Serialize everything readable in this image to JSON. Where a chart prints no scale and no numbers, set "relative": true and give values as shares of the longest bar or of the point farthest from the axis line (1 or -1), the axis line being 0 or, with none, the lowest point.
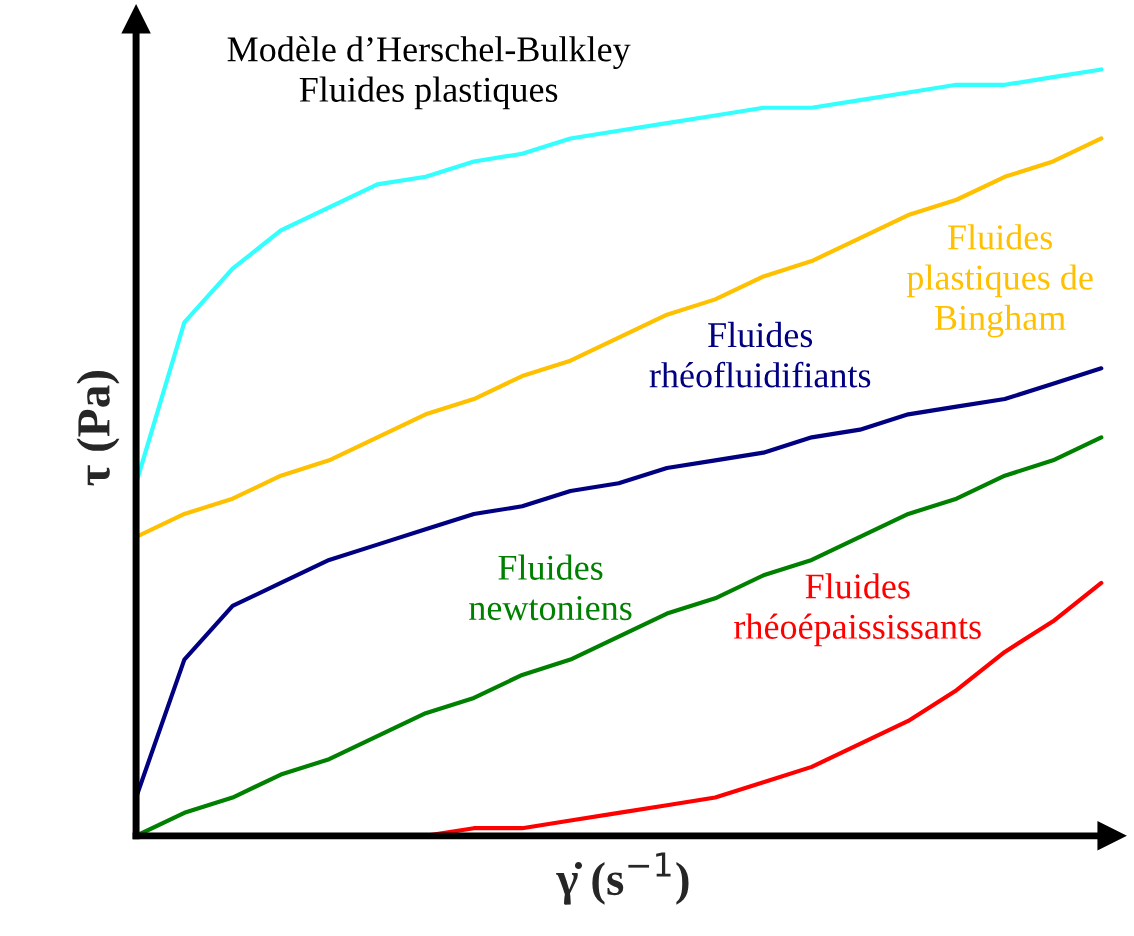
{
  "chart_data": {
    "type": "line",
    "relative": true,
    "xlabel": "γ̇ (s$^{−1}$)",
    "ylabel": "τ (Pa)",
    "legend": false,
    "marker": "none",
    "line_style": "solid",
    "categories": [
      null,
      null,
      null,
      null,
      null,
      null,
      null,
      null,
      null,
      null,
      null,
      null,
      null,
      null,
      null,
      null,
      null,
      null,
      null,
      null,
      null
    ],
    "series": [
      {
        "name": "Modèle d’Herschel-Bulkley\nFluides plastiques",
        "color": "#33ffff",
        "values": [
          0.46,
          0.67,
          0.74,
          0.79,
          0.82,
          0.85,
          0.86,
          0.88,
          0.89,
          0.91,
          0.92,
          0.93,
          0.94,
          0.95,
          0.95,
          0.96,
          0.97,
          0.98,
          0.98,
          0.99,
          1
        ]
      },
      {
        "name": "Fluides\nplastiques de\nBingham",
        "color": "#ffc000",
        "values": [
          0.39,
          0.42,
          0.44,
          0.47,
          0.49,
          0.52,
          0.55,
          0.57,
          0.6,
          0.62,
          0.65,
          0.68,
          0.7,
          0.73,
          0.75,
          0.78,
          0.81,
          0.83,
          0.86,
          0.88,
          0.91
        ]
      },
      {
        "name": "Fluides\nrhéofluidifiants",
        "color": "#000080",
        "values": [
          0.05,
          0.23,
          0.3,
          0.33,
          0.36,
          0.38,
          0.4,
          0.42,
          0.43,
          0.45,
          0.46,
          0.48,
          0.49,
          0.5,
          0.52,
          0.53,
          0.55,
          0.56,
          0.57,
          0.59,
          0.61
        ]
      },
      {
        "name": "Fluides\nnewtoniens",
        "color": "#008000",
        "values": [
          0,
          0.03,
          0.05,
          0.08,
          0.1,
          0.13,
          0.16,
          0.18,
          0.21,
          0.23,
          0.26,
          0.29,
          0.31,
          0.34,
          0.36,
          0.39,
          0.42,
          0.44,
          0.47,
          0.49,
          0.52
        ]
      },
      {
        "name": "Fluides\nrhéoépaississants",
        "color": "#ff0000",
        "values": [
          null,
          null,
          null,
          null,
          0,
          0,
          0,
          0.01,
          0.01,
          0.02,
          0.03,
          0.04,
          0.05,
          0.07,
          0.09,
          0.12,
          0.15,
          0.19,
          0.24,
          0.28,
          0.33
        ]
      }
    ]
  }
}
